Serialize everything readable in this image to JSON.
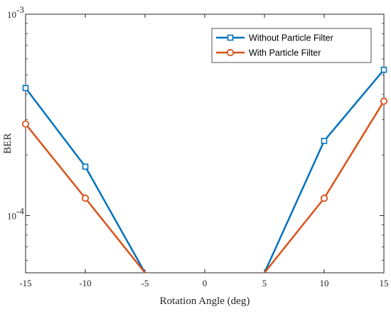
{
  "chart_data": {
    "type": "line",
    "title": "",
    "xlabel": "Rotation Angle (deg)",
    "ylabel": "BER",
    "xlim": [
      -15,
      15
    ],
    "ylim": [
      5.2e-05,
      0.001
    ],
    "yscale": "log",
    "grid": false,
    "legend_position": "top-right",
    "x": [
      -15,
      -10,
      -5,
      5,
      10,
      15
    ],
    "x_ticks": [
      "-15",
      "-10",
      "-5",
      "0",
      "5",
      "10",
      "15"
    ],
    "y_ticks": [
      {
        "base": "10",
        "exp": "-4"
      },
      {
        "base": "10",
        "exp": "-3"
      }
    ],
    "series": [
      {
        "name": "Without Particle Filter",
        "color": "#0072BD",
        "marker": "square",
        "values": [
          0.00043,
          0.000175,
          5.2e-05,
          5.2e-05,
          0.000235,
          0.00053
        ]
      },
      {
        "name": "With Particle Filter",
        "color": "#D95319",
        "marker": "circle",
        "values": [
          0.000285,
          0.000122,
          5.2e-05,
          5.2e-05,
          0.000122,
          0.00037
        ]
      }
    ]
  }
}
